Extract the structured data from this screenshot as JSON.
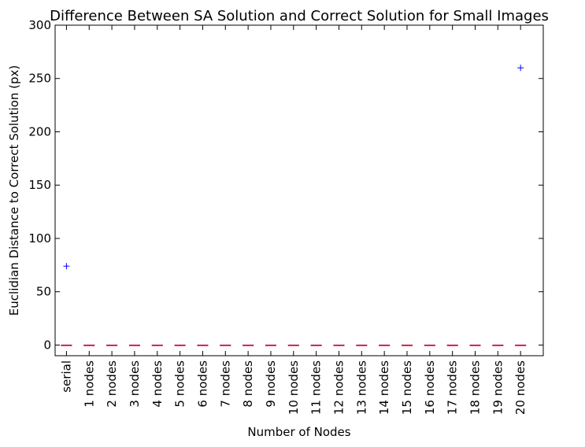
{
  "chart_data": {
    "type": "box",
    "title": "Difference Between SA Solution and Correct Solution for Small Images",
    "xlabel": "Number of Nodes",
    "ylabel": "Euclidian Distance to Correct Solution (px)",
    "ylim": [
      -10,
      300
    ],
    "yticks": [
      0,
      50,
      100,
      150,
      200,
      250,
      300
    ],
    "categories": [
      "serial",
      "1 nodes",
      "2 nodes",
      "3 nodes",
      "4 nodes",
      "5 nodes",
      "6 nodes",
      "7 nodes",
      "8 nodes",
      "9 nodes",
      "10 nodes",
      "11 nodes",
      "12 nodes",
      "13 nodes",
      "14 nodes",
      "15 nodes",
      "16 nodes",
      "17 nodes",
      "18 nodes",
      "19 nodes",
      "20 nodes"
    ],
    "medians": [
      0,
      0,
      0,
      0,
      0,
      0,
      0,
      0,
      0,
      0,
      0,
      0,
      0,
      0,
      0,
      0,
      0,
      0,
      0,
      0,
      0
    ],
    "outliers": [
      {
        "category": "serial",
        "value": 74
      },
      {
        "category": "20 nodes",
        "value": 260
      }
    ],
    "colors": {
      "box": "#0000ff",
      "median": "#ff0000",
      "outlier": "#0000ff",
      "axis": "#000000"
    }
  }
}
